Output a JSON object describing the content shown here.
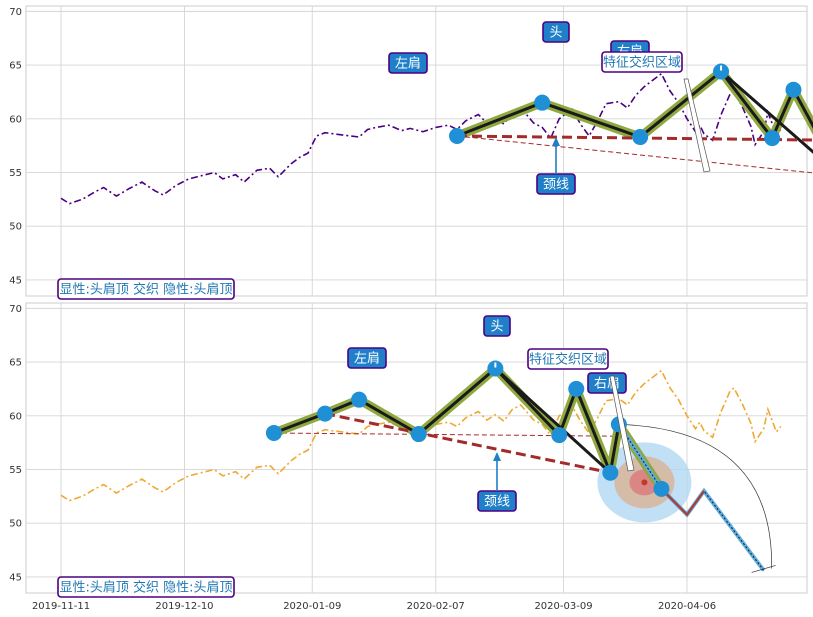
{
  "chart_data": [
    {
      "type": "line",
      "panel": "top",
      "ylim": [
        43.5,
        70.5
      ],
      "yticks": [
        "45",
        "50",
        "55",
        "60",
        "65",
        "70"
      ],
      "grid": true,
      "price_color": "#4b0082",
      "price_series": [
        [
          0,
          52.6
        ],
        [
          2,
          52.1
        ],
        [
          5,
          52.5
        ],
        [
          8,
          53.2
        ],
        [
          10,
          53.6
        ],
        [
          13,
          52.8
        ],
        [
          16,
          53.5
        ],
        [
          19,
          54.1
        ],
        [
          22,
          53.3
        ],
        [
          24,
          52.9
        ],
        [
          27,
          53.8
        ],
        [
          30,
          54.4
        ],
        [
          33,
          54.7
        ],
        [
          36,
          55.0
        ],
        [
          38,
          54.4
        ],
        [
          41,
          54.8
        ],
        [
          43,
          54.1
        ],
        [
          46,
          55.2
        ],
        [
          49,
          55.4
        ],
        [
          51,
          54.6
        ],
        [
          54,
          55.8
        ],
        [
          56,
          56.4
        ],
        [
          58,
          56.8
        ],
        [
          60,
          58.4
        ],
        [
          62,
          58.7
        ],
        [
          66,
          58.5
        ],
        [
          70,
          58.3
        ],
        [
          72,
          59.0
        ],
        [
          74,
          59.2
        ],
        [
          77,
          59.4
        ],
        [
          80,
          58.9
        ],
        [
          82,
          59.1
        ],
        [
          85,
          58.8
        ],
        [
          88,
          59.2
        ],
        [
          91,
          59.4
        ],
        [
          93,
          59.0
        ],
        [
          95,
          59.8
        ],
        [
          98,
          60.4
        ],
        [
          100,
          59.6
        ],
        [
          102,
          60.1
        ],
        [
          104,
          59.5
        ],
        [
          106,
          60.6
        ],
        [
          108,
          61.0
        ],
        [
          111,
          59.6
        ],
        [
          113,
          59.2
        ],
        [
          115,
          58.2
        ],
        [
          117,
          60.0
        ],
        [
          120,
          60.9
        ],
        [
          122,
          59.5
        ],
        [
          124,
          58.4
        ],
        [
          126,
          59.8
        ],
        [
          128,
          61.4
        ],
        [
          131,
          61.6
        ],
        [
          133,
          61.0
        ],
        [
          135,
          62.2
        ],
        [
          137,
          63.0
        ],
        [
          139,
          63.6
        ],
        [
          141,
          64.2
        ],
        [
          143,
          62.6
        ],
        [
          145,
          61.5
        ],
        [
          147,
          60.0
        ],
        [
          149,
          58.8
        ],
        [
          150,
          59.4
        ],
        [
          151,
          58.6
        ],
        [
          153,
          58.0
        ],
        [
          155,
          60.4
        ],
        [
          157,
          62.2
        ],
        [
          158,
          62.6
        ],
        [
          160,
          61.1
        ],
        [
          162,
          59.3
        ],
        [
          163,
          57.6
        ],
        [
          165,
          58.8
        ],
        [
          166,
          60.6
        ],
        [
          168,
          58.5
        ],
        [
          169,
          59.0
        ]
      ],
      "pattern_line": [
        [
          93,
          58.4
        ],
        [
          113,
          61.5
        ],
        [
          136,
          58.3
        ],
        [
          155,
          64.4
        ],
        [
          167,
          58.2
        ],
        [
          172,
          62.7
        ],
        [
          183,
          54.7
        ],
        [
          185,
          59.2
        ],
        [
          192,
          53.2
        ]
      ],
      "black_line": [
        [
          93,
          58.4
        ],
        [
          113,
          61.5
        ],
        [
          136,
          58.3
        ],
        [
          155,
          64.4
        ],
        [
          167,
          58.2
        ],
        [
          172,
          62.7
        ],
        [
          183,
          54.7
        ],
        [
          185,
          59.2
        ],
        [
          192,
          53.2
        ]
      ],
      "black_extra": [
        [
          155,
          64.4
        ],
        [
          183,
          54.7
        ]
      ],
      "markers": [
        [
          93,
          58.4
        ],
        [
          113,
          61.5
        ],
        [
          136,
          58.3
        ],
        [
          155,
          64.4
        ],
        [
          167,
          58.2
        ],
        [
          172,
          62.7
        ],
        [
          183,
          54.7
        ],
        [
          185,
          59.2
        ],
        [
          192,
          53.2
        ]
      ],
      "neckline_dash": [
        [
          93,
          58.4
        ],
        [
          183,
          58.0
        ]
      ],
      "neckline_thin": [
        [
          93,
          58.4
        ],
        [
          183,
          54.7
        ]
      ],
      "projection": [
        [
          185,
          59.2
        ],
        [
          190,
          57.5
        ],
        [
          196,
          52.0
        ]
      ],
      "region_center": [
        188,
        54.0
      ],
      "labels": {
        "left_shoulder": "左肩",
        "head": "头",
        "right_shoulder": "右肩",
        "neckline": "颈线",
        "feature": "特征交织区域",
        "status": "显性:头肩顶 交织 隐性:头肩顶"
      }
    },
    {
      "type": "line",
      "panel": "bottom",
      "ylim": [
        43.5,
        70.5
      ],
      "yticks": [
        "45",
        "50",
        "55",
        "60",
        "65",
        "70"
      ],
      "xticks": [
        "2019-11-11",
        "2019-12-10",
        "2020-01-09",
        "2020-02-07",
        "2020-03-09",
        "2020-04-06"
      ],
      "grid": true,
      "price_color": "#f0a830",
      "price_series": [
        [
          0,
          52.6
        ],
        [
          2,
          52.1
        ],
        [
          5,
          52.5
        ],
        [
          8,
          53.2
        ],
        [
          10,
          53.6
        ],
        [
          13,
          52.8
        ],
        [
          16,
          53.5
        ],
        [
          19,
          54.1
        ],
        [
          22,
          53.3
        ],
        [
          24,
          52.9
        ],
        [
          27,
          53.8
        ],
        [
          30,
          54.4
        ],
        [
          33,
          54.7
        ],
        [
          36,
          55.0
        ],
        [
          38,
          54.4
        ],
        [
          41,
          54.8
        ],
        [
          43,
          54.1
        ],
        [
          46,
          55.2
        ],
        [
          49,
          55.4
        ],
        [
          51,
          54.6
        ],
        [
          54,
          55.8
        ],
        [
          56,
          56.4
        ],
        [
          58,
          56.8
        ],
        [
          60,
          58.4
        ],
        [
          62,
          58.7
        ],
        [
          66,
          58.5
        ],
        [
          70,
          58.3
        ],
        [
          72,
          59.0
        ],
        [
          74,
          59.2
        ],
        [
          77,
          59.4
        ],
        [
          80,
          58.9
        ],
        [
          82,
          59.1
        ],
        [
          85,
          58.8
        ],
        [
          88,
          59.2
        ],
        [
          91,
          59.4
        ],
        [
          93,
          59.0
        ],
        [
          95,
          59.8
        ],
        [
          98,
          60.4
        ],
        [
          100,
          59.6
        ],
        [
          102,
          60.1
        ],
        [
          104,
          59.5
        ],
        [
          106,
          60.6
        ],
        [
          108,
          61.0
        ],
        [
          111,
          59.6
        ],
        [
          113,
          59.2
        ],
        [
          115,
          58.2
        ],
        [
          117,
          60.0
        ],
        [
          120,
          60.9
        ],
        [
          122,
          59.5
        ],
        [
          124,
          58.4
        ],
        [
          126,
          59.8
        ],
        [
          128,
          61.4
        ],
        [
          131,
          61.6
        ],
        [
          133,
          61.0
        ],
        [
          135,
          62.2
        ],
        [
          137,
          63.0
        ],
        [
          139,
          63.6
        ],
        [
          141,
          64.2
        ],
        [
          143,
          62.6
        ],
        [
          145,
          61.5
        ],
        [
          147,
          60.0
        ],
        [
          149,
          58.8
        ],
        [
          150,
          59.4
        ],
        [
          151,
          58.6
        ],
        [
          153,
          58.0
        ],
        [
          155,
          60.4
        ],
        [
          157,
          62.2
        ],
        [
          158,
          62.6
        ],
        [
          160,
          61.1
        ],
        [
          162,
          59.3
        ],
        [
          163,
          57.6
        ],
        [
          165,
          58.8
        ],
        [
          166,
          60.6
        ],
        [
          168,
          58.5
        ],
        [
          169,
          59.0
        ]
      ],
      "pattern_line": [
        [
          50,
          58.4
        ],
        [
          62,
          60.2
        ],
        [
          70,
          61.5
        ],
        [
          84,
          58.3
        ],
        [
          102,
          64.4
        ],
        [
          117,
          58.2
        ],
        [
          121,
          62.5
        ],
        [
          129,
          54.7
        ],
        [
          131,
          59.2
        ],
        [
          141,
          53.2
        ]
      ],
      "black_line": [
        [
          50,
          58.4
        ],
        [
          62,
          60.2
        ],
        [
          70,
          61.5
        ],
        [
          84,
          58.3
        ],
        [
          102,
          64.4
        ],
        [
          117,
          58.2
        ],
        [
          121,
          62.5
        ],
        [
          129,
          54.7
        ],
        [
          131,
          59.2
        ],
        [
          141,
          53.2
        ]
      ],
      "black_extra": [
        [
          102,
          64.4
        ],
        [
          129,
          54.7
        ]
      ],
      "markers": [
        [
          50,
          58.4
        ],
        [
          62,
          60.2
        ],
        [
          70,
          61.5
        ],
        [
          84,
          58.3
        ],
        [
          102,
          64.4
        ],
        [
          117,
          58.2
        ],
        [
          121,
          62.5
        ],
        [
          129,
          54.7
        ],
        [
          131,
          59.2
        ],
        [
          141,
          53.2
        ]
      ],
      "neckline_dash": [
        [
          62,
          60.2
        ],
        [
          129,
          54.7
        ]
      ],
      "neckline_thin": [
        [
          50,
          58.4
        ],
        [
          131,
          58.1
        ]
      ],
      "projection": [
        [
          131,
          59.2
        ],
        [
          141,
          53.2
        ],
        [
          147,
          50.8
        ],
        [
          151,
          53.0
        ],
        [
          165,
          45.6
        ]
      ],
      "region_center": [
        137,
        53.8
      ],
      "labels": {
        "left_shoulder": "左肩",
        "head": "头",
        "right_shoulder": "右肩",
        "neckline": "颈线",
        "feature": "特征交织区域",
        "status": "显性:头肩顶 交织 隐性:头肩顶"
      }
    }
  ]
}
